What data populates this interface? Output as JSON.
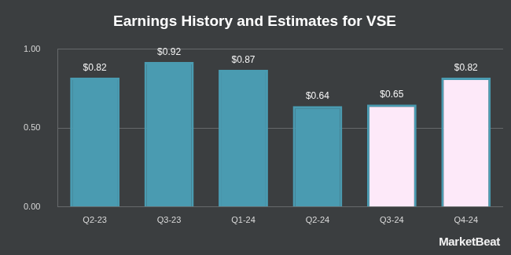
{
  "chart_data": {
    "type": "bar",
    "title": "Earnings History and Estimates for VSE",
    "categories": [
      "Q2-23",
      "Q3-23",
      "Q1-24",
      "Q2-24",
      "Q3-24",
      "Q4-24"
    ],
    "values": [
      0.82,
      0.92,
      0.87,
      0.64,
      0.65,
      0.82
    ],
    "value_labels": [
      "$0.82",
      "$0.92",
      "$0.87",
      "$0.64",
      "$0.65",
      "$0.82"
    ],
    "colors": [
      "#4a9bb1",
      "#4a9bb1",
      "#4a9bb1",
      "#4a9bb1",
      "#fde9f9",
      "#fde9f9"
    ],
    "ylim": [
      0,
      1
    ],
    "yticks": [
      {
        "value": 0,
        "label": "0.00"
      },
      {
        "value": 0.5,
        "label": "0.50"
      },
      {
        "value": 1,
        "label": "1.00"
      }
    ],
    "grid": true,
    "data_labels": true,
    "legend": false,
    "annotations": [
      "MarketBeat"
    ]
  }
}
